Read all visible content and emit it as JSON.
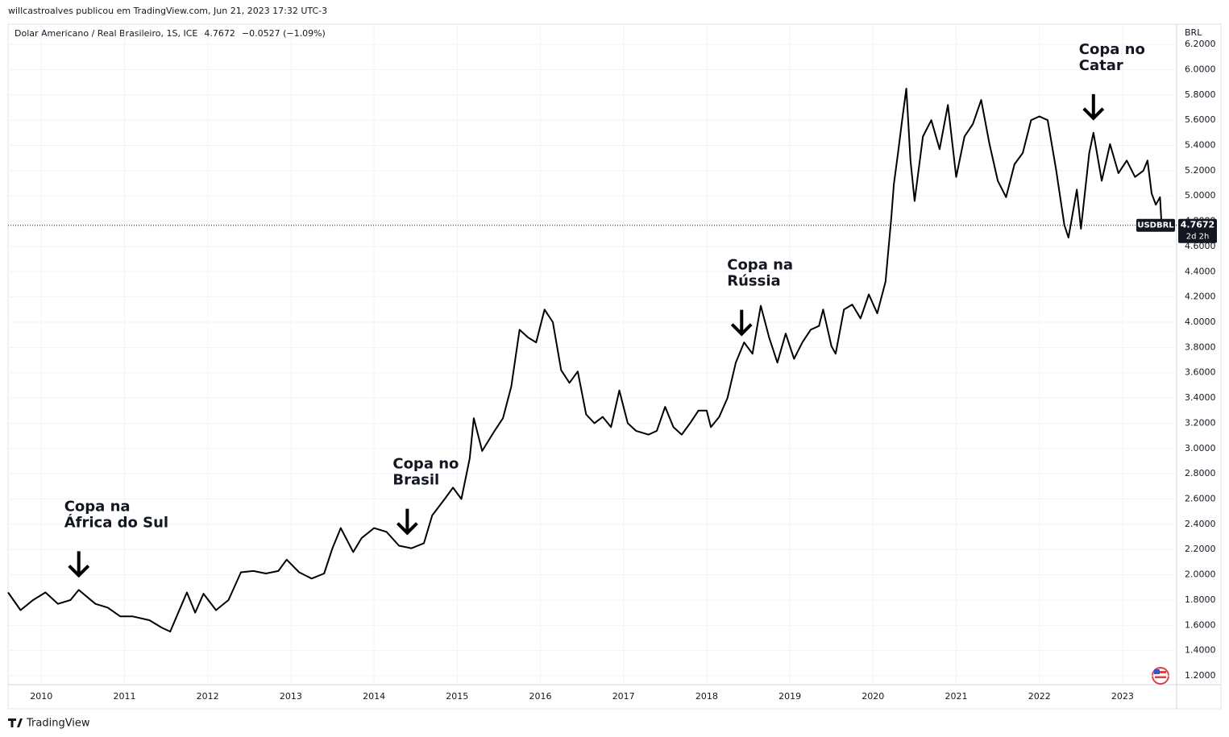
{
  "header": {
    "publisher": "willcastroalves publicou em TradingView.com, Jun 21, 2023 17:32 UTC-3"
  },
  "chart_data": {
    "type": "line",
    "title": "Dolar Americano / Real Brasileiro, 1S, ICE",
    "change": "−0.0527 (−1.09%)",
    "y_axis_label": "BRL",
    "symbol": "USDBRL",
    "countdown": "2d 2h",
    "x": [
      2009.6,
      2009.75,
      2009.9,
      2010.05,
      2010.2,
      2010.35,
      2010.45,
      2010.65,
      2010.8,
      2010.95,
      2011.1,
      2011.3,
      2011.45,
      2011.55,
      2011.75,
      2011.85,
      2011.95,
      2012.1,
      2012.25,
      2012.4,
      2012.55,
      2012.7,
      2012.85,
      2012.95,
      2013.1,
      2013.25,
      2013.4,
      2013.5,
      2013.6,
      2013.75,
      2013.85,
      2014.0,
      2014.15,
      2014.3,
      2014.45,
      2014.6,
      2014.7,
      2014.85,
      2014.95,
      2015.05,
      2015.15,
      2015.2,
      2015.3,
      2015.45,
      2015.55,
      2015.65,
      2015.75,
      2015.85,
      2015.95,
      2016.05,
      2016.15,
      2016.25,
      2016.35,
      2016.45,
      2016.55,
      2016.65,
      2016.75,
      2016.85,
      2016.95,
      2017.05,
      2017.15,
      2017.3,
      2017.4,
      2017.5,
      2017.6,
      2017.7,
      2017.8,
      2017.9,
      2018.0,
      2018.05,
      2018.15,
      2018.25,
      2018.35,
      2018.45,
      2018.55,
      2018.65,
      2018.75,
      2018.85,
      2018.95,
      2019.05,
      2019.15,
      2019.25,
      2019.35,
      2019.4,
      2019.5,
      2019.55,
      2019.65,
      2019.75,
      2019.85,
      2019.95,
      2020.05,
      2020.15,
      2020.22,
      2020.25,
      2020.3,
      2020.35,
      2020.4,
      2020.45,
      2020.5,
      2020.6,
      2020.7,
      2020.8,
      2020.9,
      2021.0,
      2021.1,
      2021.2,
      2021.3,
      2021.4,
      2021.5,
      2021.6,
      2021.7,
      2021.8,
      2021.9,
      2022.0,
      2022.1,
      2022.2,
      2022.3,
      2022.35,
      2022.45,
      2022.5,
      2022.6,
      2022.65,
      2022.75,
      2022.85,
      2022.95,
      2023.05,
      2023.15,
      2023.25,
      2023.3,
      2023.35,
      2023.4,
      2023.45,
      2023.47
    ],
    "series": [
      {
        "name": "USDBRL",
        "color": "#000000",
        "values": [
          1.86,
          1.72,
          1.8,
          1.86,
          1.77,
          1.8,
          1.88,
          1.77,
          1.74,
          1.67,
          1.67,
          1.64,
          1.58,
          1.55,
          1.86,
          1.7,
          1.85,
          1.72,
          1.8,
          2.02,
          2.03,
          2.01,
          2.03,
          2.12,
          2.02,
          1.97,
          2.01,
          2.21,
          2.37,
          2.18,
          2.29,
          2.37,
          2.34,
          2.23,
          2.21,
          2.25,
          2.47,
          2.6,
          2.69,
          2.6,
          2.92,
          3.24,
          2.98,
          3.14,
          3.24,
          3.49,
          3.94,
          3.88,
          3.84,
          4.1,
          4.0,
          3.62,
          3.52,
          3.61,
          3.27,
          3.2,
          3.25,
          3.17,
          3.46,
          3.2,
          3.14,
          3.11,
          3.14,
          3.33,
          3.17,
          3.11,
          3.2,
          3.3,
          3.3,
          3.17,
          3.25,
          3.4,
          3.68,
          3.84,
          3.75,
          4.13,
          3.88,
          3.68,
          3.91,
          3.71,
          3.84,
          3.94,
          3.97,
          4.1,
          3.81,
          3.75,
          4.1,
          4.14,
          4.03,
          4.22,
          4.07,
          4.32,
          4.83,
          5.09,
          5.34,
          5.6,
          5.85,
          5.28,
          4.96,
          5.47,
          5.6,
          5.37,
          5.72,
          5.15,
          5.47,
          5.57,
          5.76,
          5.41,
          5.12,
          4.99,
          5.25,
          5.34,
          5.6,
          5.63,
          5.6,
          5.21,
          4.77,
          4.67,
          5.05,
          4.74,
          5.34,
          5.5,
          5.12,
          5.41,
          5.18,
          5.28,
          5.15,
          5.2,
          5.28,
          5.02,
          4.93,
          4.99,
          4.7672
        ]
      }
    ],
    "xlim": [
      2009.6,
      2023.65
    ],
    "xticks": [
      2010,
      2011,
      2012,
      2013,
      2014,
      2015,
      2016,
      2017,
      2018,
      2019,
      2020,
      2021,
      2022,
      2023
    ],
    "ylim": [
      1.13,
      6.36
    ],
    "yticks": [
      {
        "value": 1.2,
        "label": "1.2000"
      },
      {
        "value": 1.4,
        "label": "1.4000"
      },
      {
        "value": 1.6,
        "label": "1.6000"
      },
      {
        "value": 1.8,
        "label": "1.8000"
      },
      {
        "value": 2.0,
        "label": "2.0000"
      },
      {
        "value": 2.2,
        "label": "2.2000"
      },
      {
        "value": 2.4,
        "label": "2.4000"
      },
      {
        "value": 2.6,
        "label": "2.6000"
      },
      {
        "value": 2.8,
        "label": "2.8000"
      },
      {
        "value": 3.0,
        "label": "3.0000"
      },
      {
        "value": 3.2,
        "label": "3.2000"
      },
      {
        "value": 3.4,
        "label": "3.4000"
      },
      {
        "value": 3.6,
        "label": "3.6000"
      },
      {
        "value": 3.8,
        "label": "3.8000"
      },
      {
        "value": 4.0,
        "label": "4.0000"
      },
      {
        "value": 4.2,
        "label": "4.2000"
      },
      {
        "value": 4.4,
        "label": "4.4000"
      },
      {
        "value": 4.6,
        "label": "4.6000"
      },
      {
        "value": 4.8,
        "label": "4.8000"
      },
      {
        "value": 5.0,
        "label": "5.0000"
      },
      {
        "value": 5.2,
        "label": "5.2000"
      },
      {
        "value": 5.4,
        "label": "5.4000"
      },
      {
        "value": 5.6,
        "label": "5.6000"
      },
      {
        "value": 5.8,
        "label": "5.8000"
      },
      {
        "value": 6.0,
        "label": "6.0000"
      },
      {
        "value": 6.2,
        "label": "6.2000"
      }
    ],
    "grid": true,
    "annotations": [
      {
        "lines": [
          "Copa na",
          "África do Sul"
        ],
        "x": 2010.45
      },
      {
        "lines": [
          "Copa no",
          "Brasil"
        ],
        "x": 2014.4
      },
      {
        "lines": [
          "Copa na",
          "Rússia"
        ],
        "x": 2018.42
      },
      {
        "lines": [
          "Copa no",
          "Catar"
        ],
        "x": 2022.65
      }
    ]
  },
  "footer": {
    "brand": "TradingView"
  }
}
